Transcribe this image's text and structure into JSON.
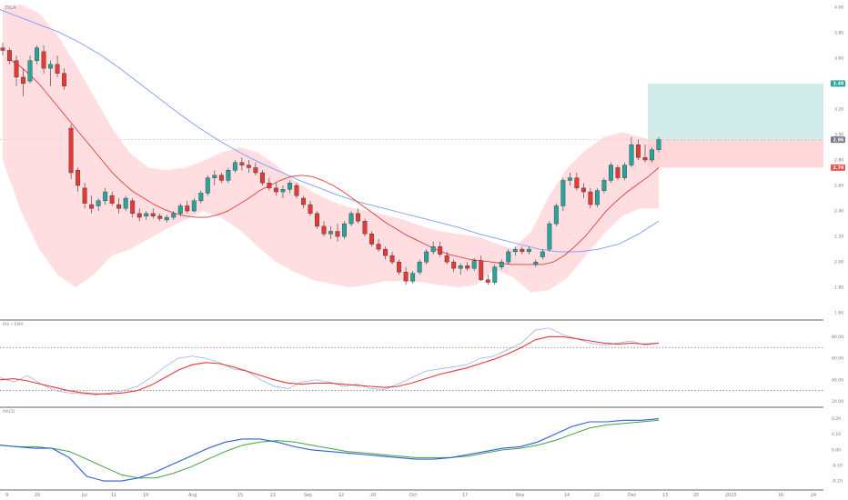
{
  "chart_data": {
    "type": "candlestick",
    "symbol_label": "TSLA",
    "x_tick_labels": [
      "9",
      "20",
      "Jul",
      "11",
      "19",
      "Aug",
      "15",
      "22",
      "Sep",
      "12",
      "20",
      "Oct",
      "17",
      "Nov",
      "14",
      "22",
      "Dec",
      "13",
      "20",
      "2023",
      "16",
      "24"
    ],
    "price_axis": {
      "ticks": [
        "4.00",
        "3.80",
        "3.60",
        "3.40",
        "3.20",
        "3.00",
        "2.80",
        "2.60",
        "2.40",
        "2.20",
        "2.00",
        "1.80",
        "1.60"
      ],
      "range": [
        1.58,
        4.02
      ]
    },
    "price_tags": [
      {
        "label": "3.40",
        "value": 3.4,
        "color": "#26a69a"
      },
      {
        "label": "2.96",
        "value": 2.96,
        "color": "#787b86"
      },
      {
        "label": "2.74",
        "value": 2.74,
        "color": "#ef5350"
      }
    ],
    "position": {
      "target": 3.4,
      "entry": 2.96,
      "stop": 2.74,
      "reward_color": "#b2dfdb",
      "risk_color": "#ffcdd2"
    },
    "colors": {
      "up": "#26a69a",
      "down": "#e53935",
      "ma_short": "#e53935",
      "ma_long": "#7b9cf0",
      "band": "#ffcdd2",
      "rsi_line": "#90a8f0",
      "rsi_ma": "#e53935",
      "macd": "#2e5cd8",
      "signal": "#43a047"
    },
    "candles": [
      [
        3.68,
        3.72,
        3.62,
        3.66
      ],
      [
        3.66,
        3.68,
        3.55,
        3.58
      ],
      [
        3.58,
        3.62,
        3.38,
        3.45
      ],
      [
        3.45,
        3.52,
        3.3,
        3.4
      ],
      [
        3.42,
        3.62,
        3.4,
        3.58
      ],
      [
        3.58,
        3.7,
        3.55,
        3.68
      ],
      [
        3.65,
        3.7,
        3.48,
        3.52
      ],
      [
        3.52,
        3.58,
        3.38,
        3.55
      ],
      [
        3.55,
        3.62,
        3.45,
        3.48
      ],
      [
        3.48,
        3.52,
        3.35,
        3.38
      ],
      [
        3.05,
        3.08,
        2.65,
        2.7
      ],
      [
        2.72,
        2.74,
        2.55,
        2.6
      ],
      [
        2.58,
        2.62,
        2.42,
        2.46
      ],
      [
        2.45,
        2.52,
        2.38,
        2.42
      ],
      [
        2.44,
        2.5,
        2.4,
        2.48
      ],
      [
        2.48,
        2.58,
        2.45,
        2.55
      ],
      [
        2.52,
        2.55,
        2.44,
        2.46
      ],
      [
        2.45,
        2.5,
        2.38,
        2.42
      ],
      [
        2.42,
        2.52,
        2.4,
        2.5
      ],
      [
        2.48,
        2.5,
        2.35,
        2.38
      ],
      [
        2.38,
        2.42,
        2.32,
        2.35
      ],
      [
        2.36,
        2.4,
        2.33,
        2.38
      ],
      [
        2.38,
        2.42,
        2.34,
        2.36
      ],
      [
        2.36,
        2.38,
        2.32,
        2.34
      ],
      [
        2.33,
        2.37,
        2.31,
        2.35
      ],
      [
        2.35,
        2.4,
        2.33,
        2.38
      ],
      [
        2.38,
        2.46,
        2.36,
        2.44
      ],
      [
        2.44,
        2.48,
        2.38,
        2.4
      ],
      [
        2.4,
        2.5,
        2.39,
        2.48
      ],
      [
        2.48,
        2.56,
        2.46,
        2.54
      ],
      [
        2.54,
        2.68,
        2.52,
        2.66
      ],
      [
        2.66,
        2.72,
        2.6,
        2.68
      ],
      [
        2.68,
        2.7,
        2.62,
        2.64
      ],
      [
        2.64,
        2.74,
        2.62,
        2.72
      ],
      [
        2.72,
        2.8,
        2.7,
        2.78
      ],
      [
        2.78,
        2.82,
        2.72,
        2.76
      ],
      [
        2.76,
        2.8,
        2.7,
        2.74
      ],
      [
        2.74,
        2.78,
        2.68,
        2.7
      ],
      [
        2.7,
        2.72,
        2.6,
        2.62
      ],
      [
        2.62,
        2.66,
        2.56,
        2.58
      ],
      [
        2.58,
        2.62,
        2.52,
        2.55
      ],
      [
        2.55,
        2.6,
        2.5,
        2.57
      ],
      [
        2.57,
        2.64,
        2.54,
        2.62
      ],
      [
        2.6,
        2.62,
        2.5,
        2.52
      ],
      [
        2.5,
        2.52,
        2.42,
        2.45
      ],
      [
        2.45,
        2.48,
        2.36,
        2.38
      ],
      [
        2.38,
        2.4,
        2.26,
        2.28
      ],
      [
        2.28,
        2.32,
        2.2,
        2.22
      ],
      [
        2.22,
        2.28,
        2.18,
        2.24
      ],
      [
        2.24,
        2.3,
        2.16,
        2.2
      ],
      [
        2.2,
        2.32,
        2.18,
        2.3
      ],
      [
        2.3,
        2.4,
        2.28,
        2.38
      ],
      [
        2.38,
        2.42,
        2.3,
        2.32
      ],
      [
        2.32,
        2.34,
        2.2,
        2.22
      ],
      [
        2.22,
        2.24,
        2.12,
        2.14
      ],
      [
        2.14,
        2.18,
        2.08,
        2.1
      ],
      [
        2.1,
        2.12,
        2.02,
        2.05
      ],
      [
        2.05,
        2.08,
        1.98,
        2.0
      ],
      [
        2.0,
        2.02,
        1.9,
        1.92
      ],
      [
        1.92,
        1.96,
        1.82,
        1.85
      ],
      [
        1.85,
        1.93,
        1.83,
        1.91
      ],
      [
        1.92,
        2.02,
        1.9,
        2.0
      ],
      [
        2.0,
        2.1,
        1.98,
        2.08
      ],
      [
        2.08,
        2.16,
        2.06,
        2.12
      ],
      [
        2.12,
        2.16,
        2.04,
        2.06
      ],
      [
        2.05,
        2.08,
        1.98,
        2.0
      ],
      [
        2.0,
        2.02,
        1.92,
        1.95
      ],
      [
        1.95,
        1.99,
        1.9,
        1.97
      ],
      [
        1.97,
        2.0,
        1.93,
        1.95
      ],
      [
        1.95,
        2.03,
        1.93,
        2.01
      ],
      [
        2.01,
        2.05,
        1.85,
        1.86
      ],
      [
        1.86,
        1.9,
        1.82,
        1.84
      ],
      [
        1.84,
        1.98,
        1.82,
        1.96
      ],
      [
        1.96,
        2.02,
        1.94,
        2.0
      ],
      [
        2.0,
        2.1,
        1.98,
        2.08
      ],
      [
        2.08,
        2.12,
        2.05,
        2.1
      ],
      [
        2.1,
        2.12,
        2.06,
        2.08
      ],
      [
        2.08,
        2.12,
        2.06,
        2.1
      ],
      [
        1.98,
        2.02,
        1.96,
        2.0
      ],
      [
        2.04,
        2.1,
        2.02,
        2.08
      ],
      [
        2.1,
        2.32,
        2.08,
        2.3
      ],
      [
        2.3,
        2.46,
        2.28,
        2.44
      ],
      [
        2.44,
        2.66,
        2.4,
        2.64
      ],
      [
        2.64,
        2.7,
        2.6,
        2.66
      ],
      [
        2.66,
        2.7,
        2.56,
        2.58
      ],
      [
        2.58,
        2.62,
        2.5,
        2.55
      ],
      [
        2.55,
        2.58,
        2.42,
        2.45
      ],
      [
        2.45,
        2.58,
        2.43,
        2.56
      ],
      [
        2.56,
        2.66,
        2.54,
        2.64
      ],
      [
        2.64,
        2.78,
        2.62,
        2.76
      ],
      [
        2.74,
        2.76,
        2.64,
        2.66
      ],
      [
        2.66,
        2.78,
        2.64,
        2.76
      ],
      [
        2.76,
        2.98,
        2.74,
        2.92
      ],
      [
        2.92,
        2.96,
        2.8,
        2.82
      ],
      [
        2.82,
        2.92,
        2.78,
        2.8
      ],
      [
        2.8,
        2.9,
        2.78,
        2.88
      ],
      [
        2.88,
        2.98,
        2.86,
        2.96
      ]
    ],
    "ma_short": [
      3.6,
      3.55,
      3.48,
      3.4,
      3.3,
      3.2,
      3.1,
      3.0,
      2.9,
      2.8,
      2.7,
      2.62,
      2.55,
      2.5,
      2.45,
      2.41,
      2.38,
      2.36,
      2.35,
      2.35,
      2.37,
      2.4,
      2.45,
      2.5,
      2.56,
      2.6,
      2.64,
      2.67,
      2.68,
      2.67,
      2.64,
      2.6,
      2.55,
      2.49,
      2.43,
      2.37,
      2.31,
      2.26,
      2.21,
      2.17,
      2.13,
      2.09,
      2.06,
      2.04,
      2.02,
      2.01,
      2.0,
      1.99,
      1.98,
      1.98,
      1.98,
      1.98,
      2.0,
      2.05,
      2.12,
      2.2,
      2.3,
      2.4,
      2.48,
      2.55,
      2.61,
      2.67,
      2.74
    ],
    "ma_long": [
      3.98,
      3.92,
      3.86,
      3.8,
      3.72,
      3.63,
      3.52,
      3.4,
      3.28,
      3.16,
      3.05,
      2.95,
      2.86,
      2.78,
      2.71,
      2.64,
      2.58,
      2.52,
      2.47,
      2.43,
      2.39,
      2.35,
      2.31,
      2.27,
      2.22,
      2.18,
      2.14,
      2.1,
      2.08,
      2.08,
      2.1,
      2.14,
      2.22,
      2.32
    ],
    "band_upper": [
      4.0,
      4.02,
      3.95,
      3.78,
      3.55,
      3.3,
      3.05,
      2.85,
      2.74,
      2.72,
      2.74,
      2.79,
      2.86,
      2.9,
      2.86,
      2.76,
      2.64,
      2.55,
      2.48,
      2.43,
      2.4,
      2.37,
      2.33,
      2.28,
      2.24,
      2.22,
      2.2,
      2.15,
      2.1,
      2.24,
      2.52,
      2.74,
      2.88,
      2.98,
      3.02,
      2.98,
      2.94
    ],
    "band_lower": [
      2.8,
      2.4,
      2.1,
      1.9,
      1.8,
      1.9,
      2.05,
      2.1,
      2.18,
      2.26,
      2.33,
      2.4,
      2.35,
      2.25,
      2.12,
      2.0,
      1.92,
      1.86,
      1.83,
      1.8,
      1.82,
      1.85,
      1.85,
      1.84,
      1.82,
      1.8,
      1.82,
      1.94,
      1.88,
      1.76,
      1.78,
      1.88,
      2.05,
      2.22,
      2.36,
      2.42,
      2.42
    ],
    "rsi": {
      "label": "RSI • EMA",
      "ticks": [
        "80.00",
        "60.00",
        "40.00",
        "20.00"
      ],
      "range": [
        18,
        92
      ],
      "upper_band": 70,
      "lower_band": 30,
      "rsi_values": [
        42,
        38,
        44,
        36,
        30,
        28,
        27,
        26,
        28,
        30,
        34,
        42,
        52,
        60,
        62,
        60,
        56,
        50,
        48,
        40,
        34,
        32,
        38,
        40,
        38,
        34,
        36,
        32,
        31,
        36,
        42,
        48,
        50,
        52,
        54,
        60,
        62,
        68,
        74,
        86,
        88,
        82,
        78,
        74,
        72,
        74,
        76,
        72,
        74
      ],
      "ema_values": [
        40,
        41,
        39,
        36,
        33,
        30,
        28,
        27,
        27,
        28,
        30,
        35,
        42,
        49,
        54,
        56,
        55,
        52,
        48,
        44,
        40,
        37,
        36,
        37,
        37,
        36,
        35,
        34,
        33,
        34,
        37,
        41,
        45,
        48,
        51,
        55,
        59,
        64,
        70,
        77,
        80,
        80,
        78,
        76,
        74,
        73,
        74,
        73,
        74
      ]
    },
    "macd": {
      "label": "MACD",
      "ticks": [
        "0.20",
        "0.10",
        "0.00",
        "-0.10",
        "-0.20"
      ],
      "range": [
        -0.24,
        0.25
      ],
      "macd_values": [
        0.03,
        0.02,
        0.01,
        0.01,
        -0.05,
        -0.17,
        -0.2,
        -0.2,
        -0.18,
        -0.14,
        -0.09,
        -0.04,
        0.01,
        0.05,
        0.07,
        0.07,
        0.05,
        0.02,
        0.0,
        -0.01,
        -0.02,
        -0.03,
        -0.04,
        -0.05,
        -0.06,
        -0.06,
        -0.05,
        -0.03,
        -0.01,
        0.01,
        0.02,
        0.05,
        0.1,
        0.15,
        0.18,
        0.18,
        0.19,
        0.19,
        0.2
      ],
      "signal_values": [
        0.03,
        0.02,
        0.02,
        0.01,
        -0.01,
        -0.06,
        -0.11,
        -0.16,
        -0.18,
        -0.18,
        -0.15,
        -0.11,
        -0.06,
        -0.01,
        0.03,
        0.05,
        0.06,
        0.05,
        0.03,
        0.01,
        -0.01,
        -0.02,
        -0.03,
        -0.04,
        -0.05,
        -0.05,
        -0.05,
        -0.04,
        -0.02,
        0.0,
        0.01,
        0.03,
        0.06,
        0.1,
        0.14,
        0.16,
        0.17,
        0.18,
        0.19
      ]
    }
  }
}
